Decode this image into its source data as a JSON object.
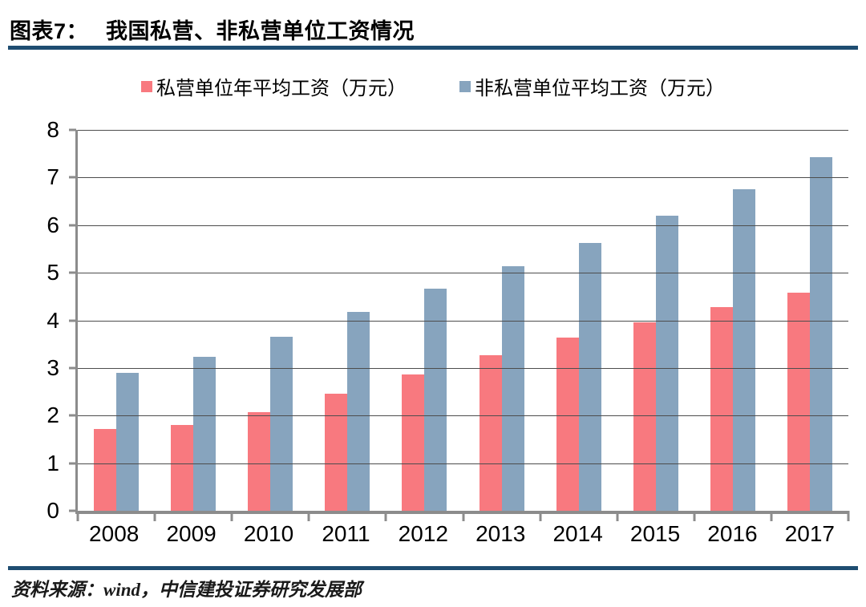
{
  "header": {
    "figure_label": "图表7：",
    "title": "我国私营、非私营单位工资情况"
  },
  "colors": {
    "accent_rule": "#1E4D71",
    "series_private": "#F8797F",
    "series_nonprivate": "#87A4BE",
    "axis": "#8C8C8C",
    "gridline": "#4D4D4D"
  },
  "chart_data": {
    "type": "bar",
    "title": "我国私营、非私营单位工资情况",
    "categories": [
      "2008",
      "2009",
      "2010",
      "2011",
      "2012",
      "2013",
      "2014",
      "2015",
      "2016",
      "2017"
    ],
    "series": [
      {
        "name": "私营单位年平均工资（万元）",
        "color": "#F8797F",
        "values": [
          1.71,
          1.81,
          2.08,
          2.46,
          2.86,
          3.27,
          3.64,
          3.96,
          4.28,
          4.58
        ]
      },
      {
        "name": "非私营单位平均工资（万元）",
        "color": "#87A4BE",
        "values": [
          2.89,
          3.23,
          3.65,
          4.17,
          4.67,
          5.14,
          5.63,
          6.2,
          6.76,
          7.43
        ]
      }
    ],
    "xlabel": "",
    "ylabel": "",
    "ylim": [
      0,
      8
    ],
    "yticks": [
      0,
      1,
      2,
      3,
      4,
      5,
      6,
      7,
      8
    ],
    "grid": true,
    "legend_position": "top"
  },
  "footer": {
    "source": "资料来源：wind，中信建投证券研究发展部"
  }
}
